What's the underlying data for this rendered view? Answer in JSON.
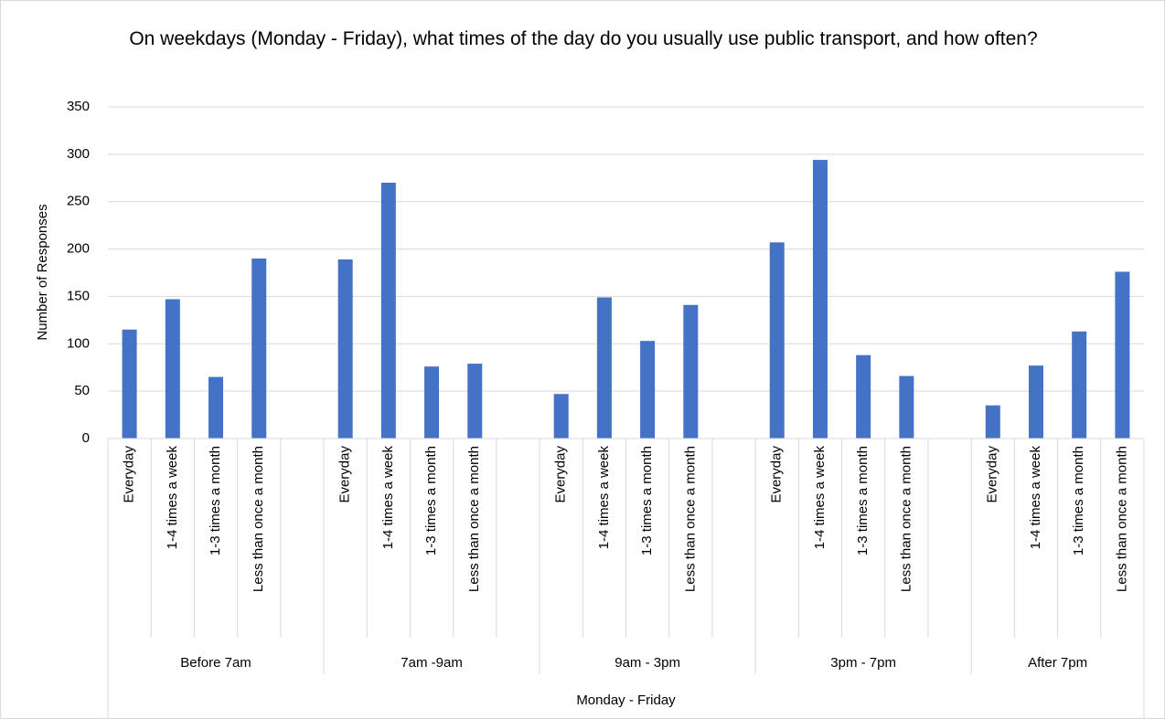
{
  "chart_data": {
    "type": "bar",
    "title": "On weekdays (Monday - Friday), what times of the day do you usually use public transport, and how often?",
    "ylabel": "Number of Responses",
    "supergroup": "Monday - Friday",
    "color": "#4472c4",
    "ylim": [
      0,
      350
    ],
    "yticks": [
      0,
      50,
      100,
      150,
      200,
      250,
      300,
      350
    ],
    "grid": true,
    "groups": [
      {
        "name": "Before 7am",
        "categories": [
          "Everyday",
          "1-4 times a week",
          "1-3 times a month",
          "Less than once a month",
          null
        ],
        "values": [
          115,
          147,
          65,
          190,
          null
        ]
      },
      {
        "name": "7am -9am",
        "categories": [
          "Everyday",
          "1-4 times a week",
          "1-3 times a month",
          "Less than once a month",
          null
        ],
        "values": [
          189,
          270,
          76,
          79,
          null
        ]
      },
      {
        "name": "9am - 3pm",
        "categories": [
          "Everyday",
          "1-4 times a week",
          "1-3 times a month",
          "Less than once a month",
          null
        ],
        "values": [
          47,
          149,
          103,
          141,
          null
        ]
      },
      {
        "name": "3pm - 7pm",
        "categories": [
          "Everyday",
          "1-4 times a week",
          "1-3 times a month",
          "Less than once a month",
          null
        ],
        "values": [
          207,
          294,
          88,
          66,
          null
        ]
      },
      {
        "name": "After 7pm",
        "categories": [
          "Everyday",
          "1-4 times a week",
          "1-3 times a month",
          "Less than once a month"
        ],
        "values": [
          35,
          77,
          113,
          176
        ]
      }
    ]
  }
}
